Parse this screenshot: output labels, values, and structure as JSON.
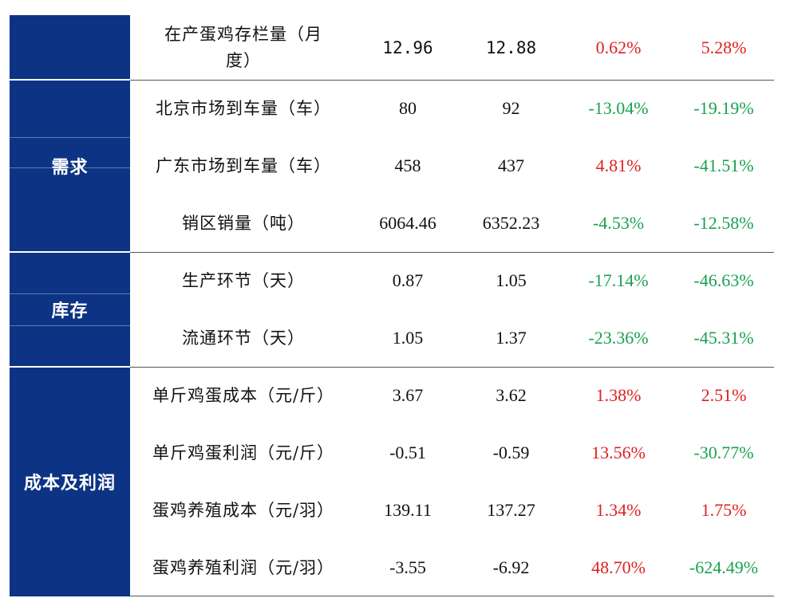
{
  "rows": [
    {
      "name": "在产蛋鸡存栏量（月度）",
      "v1": "12.96",
      "v2": "12.88",
      "p1": "0.62%",
      "p1_dir": "up",
      "p2": "5.28%",
      "p2_dir": "up"
    },
    {
      "name": "北京市场到车量（车）",
      "v1": "80",
      "v2": "92",
      "p1": "-13.04%",
      "p1_dir": "down",
      "p2": "-19.19%",
      "p2_dir": "down"
    },
    {
      "name": "广东市场到车量（车）",
      "v1": "458",
      "v2": "437",
      "p1": "4.81%",
      "p1_dir": "up",
      "p2": "-41.51%",
      "p2_dir": "down"
    },
    {
      "name": "销区销量（吨）",
      "v1": "6064.46",
      "v2": "6352.23",
      "p1": "-4.53%",
      "p1_dir": "down",
      "p2": "-12.58%",
      "p2_dir": "down"
    },
    {
      "name": "生产环节（天）",
      "v1": "0.87",
      "v2": "1.05",
      "p1": "-17.14%",
      "p1_dir": "down",
      "p2": "-46.63%",
      "p2_dir": "down"
    },
    {
      "name": "流通环节（天）",
      "v1": "1.05",
      "v2": "1.37",
      "p1": "-23.36%",
      "p1_dir": "down",
      "p2": "-45.31%",
      "p2_dir": "down"
    },
    {
      "name": "单斤鸡蛋成本（元/斤）",
      "v1": "3.67",
      "v2": "3.62",
      "p1": "1.38%",
      "p1_dir": "up",
      "p2": "2.51%",
      "p2_dir": "up"
    },
    {
      "name": "单斤鸡蛋利润（元/斤）",
      "v1": "-0.51",
      "v2": "-0.59",
      "p1": "13.56%",
      "p1_dir": "up",
      "p2": "-30.77%",
      "p2_dir": "down"
    },
    {
      "name": "蛋鸡养殖成本（元/羽）",
      "v1": "139.11",
      "v2": "137.27",
      "p1": "1.34%",
      "p1_dir": "up",
      "p2": "1.75%",
      "p2_dir": "up"
    },
    {
      "name": "蛋鸡养殖利润（元/羽）",
      "v1": "-3.55",
      "v2": "-6.92",
      "p1": "48.70%",
      "p1_dir": "up",
      "p2": "-624.49%",
      "p2_dir": "down"
    }
  ],
  "categories": {
    "demand": "需求",
    "inventory": "库存",
    "cost_profit": "成本及利润"
  },
  "colors": {
    "category_bg": "#0d3384",
    "increase": "#e02020",
    "decrease": "#1aa150"
  }
}
